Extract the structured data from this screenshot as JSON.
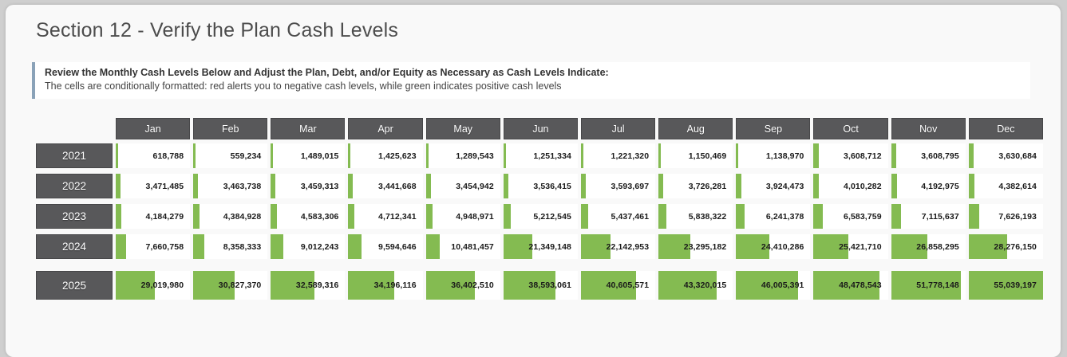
{
  "page": {
    "title": "Section 12 - Verify the Plan Cash Levels"
  },
  "notice": {
    "line1": "Review the Monthly Cash Levels Below and Adjust the Plan, Debt, and/or Equity as Necessary as Cash Levels Indicate:",
    "line2": "The cells are conditionally formatted: red alerts you to negative cash levels, while green indicates positive cash levels"
  },
  "table": {
    "months": [
      "Jan",
      "Feb",
      "Mar",
      "Apr",
      "May",
      "Jun",
      "Jul",
      "Aug",
      "Sep",
      "Oct",
      "Nov",
      "Dec"
    ],
    "max_value": 55039197,
    "rows": [
      {
        "year": "2021",
        "values": [
          "618,788",
          "559,234",
          "1,489,015",
          "1,425,623",
          "1,289,543",
          "1,251,334",
          "1,221,320",
          "1,150,469",
          "1,138,970",
          "3,608,712",
          "3,608,795",
          "3,630,684"
        ]
      },
      {
        "year": "2022",
        "values": [
          "3,471,485",
          "3,463,738",
          "3,459,313",
          "3,441,668",
          "3,454,942",
          "3,536,415",
          "3,593,697",
          "3,726,281",
          "3,924,473",
          "4,010,282",
          "4,192,975",
          "4,382,614"
        ]
      },
      {
        "year": "2023",
        "values": [
          "4,184,279",
          "4,384,928",
          "4,583,306",
          "4,712,341",
          "4,948,971",
          "5,212,545",
          "5,437,461",
          "5,838,322",
          "6,241,378",
          "6,583,759",
          "7,115,637",
          "7,626,193"
        ]
      },
      {
        "year": "2024",
        "values": [
          "7,660,758",
          "8,358,333",
          "9,012,243",
          "9,594,646",
          "10,481,457",
          "21,349,148",
          "22,142,953",
          "23,295,182",
          "24,410,286",
          "25,421,710",
          "26,858,295",
          "28,276,150"
        ]
      },
      {
        "year": "2025",
        "values": [
          "29,019,980",
          "30,827,370",
          "32,589,316",
          "34,196,116",
          "36,402,510",
          "38,593,061",
          "40,605,571",
          "43,320,015",
          "46,005,391",
          "48,478,543",
          "51,778,148",
          "55,039,197"
        ]
      }
    ]
  },
  "colors": {
    "positive_cash_green": "#84bb51",
    "negative_cash_alert": "red",
    "header_gray": "#58585a",
    "notice_accent": "#8aa2b8"
  }
}
